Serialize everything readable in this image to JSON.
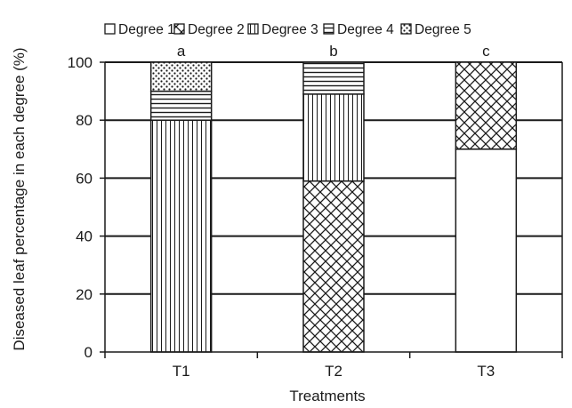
{
  "chart_data": {
    "type": "bar",
    "stacked": true,
    "categories": [
      "T1",
      "T2",
      "T3"
    ],
    "category_letters": [
      "a",
      "b",
      "c"
    ],
    "series": [
      {
        "name": "Degree 1",
        "pattern": "blank",
        "values": [
          0,
          0,
          70
        ]
      },
      {
        "name": "Degree 2",
        "pattern": "crosshatch",
        "values": [
          0,
          59,
          30
        ]
      },
      {
        "name": "Degree 3",
        "pattern": "vertical",
        "values": [
          80,
          30,
          0
        ]
      },
      {
        "name": "Degree 4",
        "pattern": "horizontal",
        "values": [
          10,
          11,
          0
        ]
      },
      {
        "name": "Degree 5",
        "pattern": "dots",
        "values": [
          10,
          0,
          0
        ]
      }
    ],
    "xlabel": "Treatments",
    "ylabel": "Diseased leaf percentage in each degree (%)",
    "ylim": [
      0,
      100
    ],
    "yticks": [
      0,
      20,
      40,
      60,
      80,
      100
    ],
    "grid": true,
    "legend_position": "top",
    "colors": {
      "stroke": "#1a1a1a",
      "fill": "#ffffff"
    }
  }
}
